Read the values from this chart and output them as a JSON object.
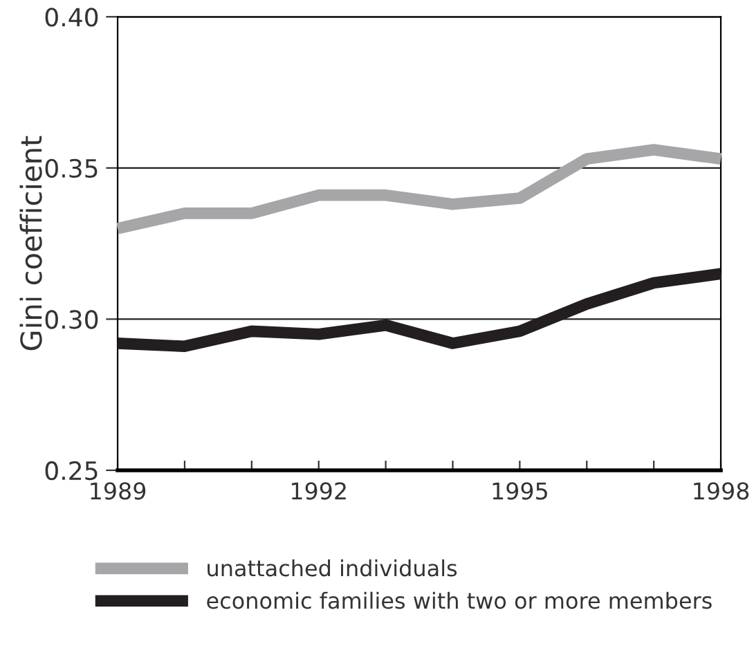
{
  "chart_data": {
    "type": "line",
    "ylabel": "Gini coefficient",
    "x": [
      1989,
      1990,
      1991,
      1992,
      1993,
      1994,
      1995,
      1996,
      1997,
      1998
    ],
    "series": [
      {
        "name": "unattached individuals",
        "color": "#a6a6a8",
        "values": [
          0.33,
          0.335,
          0.335,
          0.341,
          0.341,
          0.338,
          0.34,
          0.353,
          0.356,
          0.353
        ]
      },
      {
        "name": "economic families with two or more members",
        "color": "#231f20",
        "values": [
          0.292,
          0.291,
          0.296,
          0.295,
          0.298,
          0.292,
          0.296,
          0.305,
          0.312,
          0.315
        ]
      }
    ],
    "xlim": [
      1989,
      1998
    ],
    "ylim": [
      0.25,
      0.4
    ],
    "xticks": [
      1989,
      {
        "value": 1990,
        "label": null
      },
      {
        "value": 1991,
        "label": null
      },
      1992,
      {
        "value": 1993,
        "label": null
      },
      {
        "value": 1994,
        "label": null
      },
      1995,
      {
        "value": 1996,
        "label": null
      },
      {
        "value": 1997,
        "label": null
      },
      1998
    ],
    "yticks": [
      {
        "value": 0.25,
        "label": "0.25"
      },
      {
        "value": 0.3,
        "label": "0.30"
      },
      {
        "value": 0.35,
        "label": "0.35"
      },
      {
        "value": 0.4,
        "label": "0.40"
      }
    ],
    "grid": "y",
    "legend": "bottom",
    "marker": "none",
    "line_style": "solid"
  }
}
